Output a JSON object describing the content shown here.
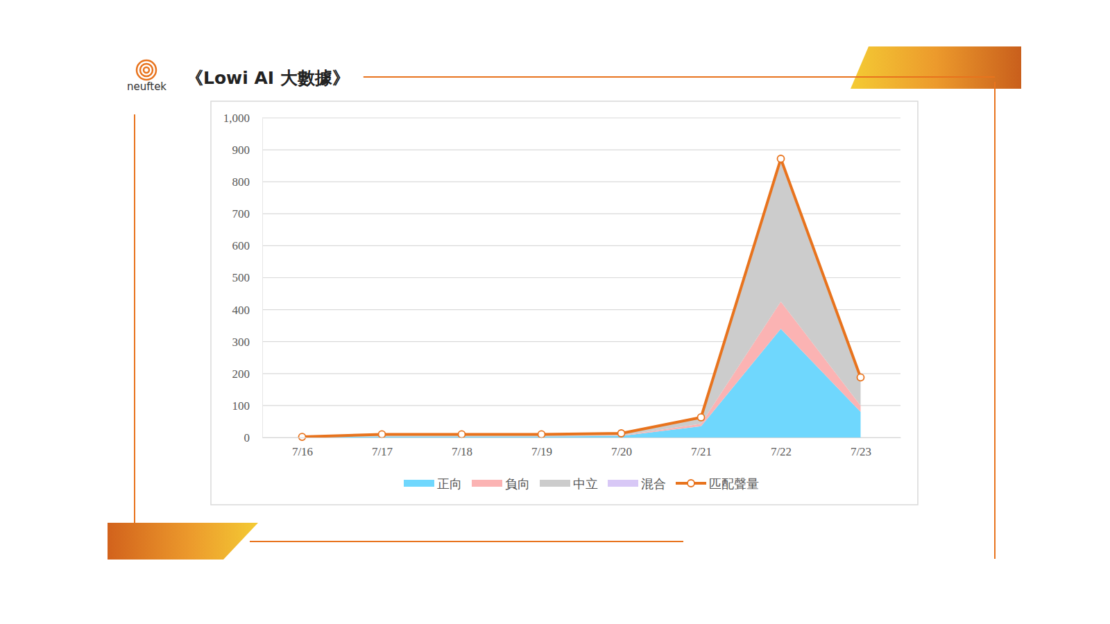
{
  "header": {
    "logo": "neuftek",
    "title": "《Lowi AI 大數據》"
  },
  "chart_data": {
    "type": "area",
    "stacked": true,
    "grid": true,
    "legend": "bottom",
    "categories": [
      "7/16",
      "7/17",
      "7/18",
      "7/19",
      "7/20",
      "7/21",
      "7/22",
      "7/23"
    ],
    "ylim": [
      0,
      1000
    ],
    "yticks": [
      0,
      100,
      200,
      300,
      400,
      500,
      600,
      700,
      800,
      900,
      {
        "value": 1000,
        "label": "1,000"
      }
    ],
    "series": [
      {
        "name": "正向",
        "type": "area",
        "color": "#6fd7fd",
        "values": [
          1,
          3,
          3,
          3,
          5,
          35,
          340,
          80
        ]
      },
      {
        "name": "負向",
        "type": "area",
        "color": "#fbb3b3",
        "values": [
          0,
          1,
          1,
          1,
          1,
          8,
          85,
          20
        ]
      },
      {
        "name": "中立",
        "type": "area",
        "color": "#cccccc",
        "values": [
          1,
          5,
          5,
          5,
          6,
          18,
          435,
          85
        ]
      },
      {
        "name": "混合",
        "type": "area",
        "color": "#d8c8f6",
        "values": [
          0,
          1,
          1,
          1,
          1,
          2,
          12,
          3
        ]
      },
      {
        "name": "匹配聲量",
        "type": "line",
        "color": "#e8731d",
        "marker": "circle",
        "values": [
          2,
          10,
          10,
          10,
          13,
          63,
          872,
          188
        ]
      }
    ]
  }
}
